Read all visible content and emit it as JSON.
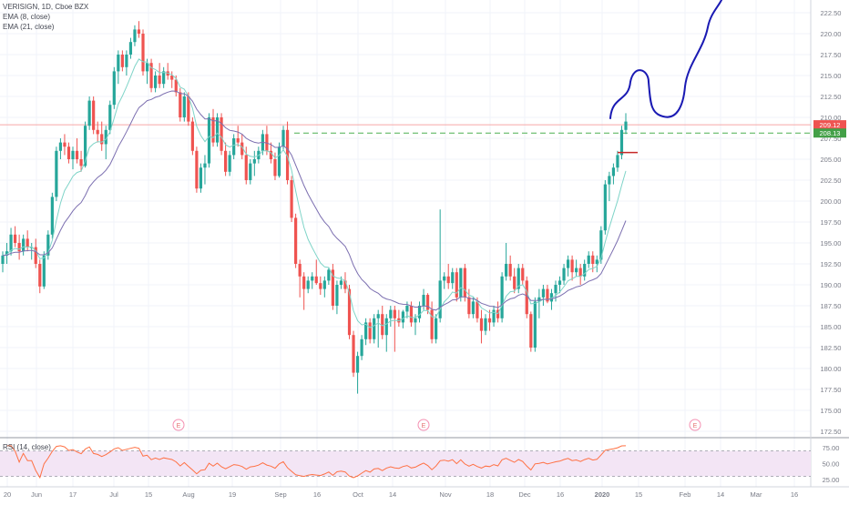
{
  "chart_data": {
    "type": "candlestick",
    "symbol_line": "VERISIGN, 1D, Cboe BZX",
    "indicators": [
      "EMA (8, close)",
      "EMA (21, close)"
    ],
    "rsi_label": "RSI (14, close)",
    "y_ticks": [
      172.5,
      175.0,
      177.5,
      180.0,
      182.5,
      185.0,
      187.5,
      190.0,
      192.5,
      195.0,
      197.5,
      200.0,
      202.5,
      205.0,
      207.5,
      210.0,
      212.5,
      215.0,
      217.5,
      220.0,
      222.5
    ],
    "rsi_ticks": [
      75.0,
      50.0,
      25.0
    ],
    "x_ticks": [
      "20",
      "Jun",
      "17",
      "Jul",
      "15",
      "Aug",
      "19",
      "Sep",
      "16",
      "Oct",
      "14",
      "Nov",
      "18",
      "Dec",
      "16",
      "2020",
      "15",
      "Feb",
      "14",
      "Mar",
      "16"
    ],
    "price_tags": {
      "current": "209.12",
      "level": "208.13"
    },
    "horizontal_lines": {
      "resistance": 209.12,
      "support_dashed": 208.13
    },
    "earnings_markers": [
      "E",
      "E",
      "E"
    ],
    "colors": {
      "up": "#26a69a",
      "down": "#ef5350",
      "ema8": "#7fd4c8",
      "ema21": "#7c6fb0",
      "rsi": "#ff7043",
      "drawing": "#1a1ab3"
    },
    "candles_approx": [
      [
        192.5,
        194,
        191.5,
        193.5
      ],
      [
        193.5,
        195,
        192.5,
        194
      ],
      [
        194,
        196.8,
        193.5,
        196
      ],
      [
        196,
        197,
        194.5,
        195
      ],
      [
        195,
        196,
        193,
        194
      ],
      [
        194,
        196,
        193.5,
        195.5
      ],
      [
        195.5,
        196.5,
        194,
        194.5
      ],
      [
        194.5,
        195,
        193,
        194.5
      ],
      [
        194.5,
        195.5,
        192,
        192.5
      ],
      [
        192.5,
        193,
        189,
        189.8
      ],
      [
        189.8,
        194,
        189.5,
        193.5
      ],
      [
        193.5,
        196.5,
        193,
        196
      ],
      [
        196,
        201,
        195.5,
        200.5
      ],
      [
        200.5,
        206.5,
        200,
        206
      ],
      [
        206,
        207.5,
        205,
        207
      ],
      [
        207,
        208,
        205.5,
        206.5
      ],
      [
        206.5,
        207,
        204.5,
        205
      ],
      [
        205,
        206.5,
        203.8,
        206
      ],
      [
        206,
        207.5,
        204.5,
        205
      ],
      [
        205,
        206,
        203.5,
        204.2
      ],
      [
        204.2,
        209.5,
        204,
        209
      ],
      [
        209,
        212.5,
        208.5,
        212
      ],
      [
        212,
        212.5,
        208,
        208.5
      ],
      [
        208.5,
        209.5,
        207,
        208
      ],
      [
        208,
        209.5,
        206,
        206.8
      ],
      [
        206.8,
        209,
        205,
        208.5
      ],
      [
        208.5,
        212,
        208,
        211.5
      ],
      [
        211.5,
        216,
        211,
        215.5
      ],
      [
        215.5,
        218,
        214,
        217.5
      ],
      [
        217.5,
        218,
        215.5,
        216
      ],
      [
        216,
        218,
        215,
        217.5
      ],
      [
        217.5,
        219.5,
        217,
        219
      ],
      [
        219,
        221,
        218.5,
        220.5
      ],
      [
        220.5,
        221.5,
        219.5,
        220
      ],
      [
        220,
        220.5,
        215,
        215.5
      ],
      [
        215.5,
        217,
        214,
        216.5
      ],
      [
        216.5,
        217,
        213,
        213.5
      ],
      [
        213.5,
        215.5,
        213,
        215
      ],
      [
        215,
        216.5,
        213.5,
        214
      ],
      [
        214,
        216,
        213.5,
        215.5
      ],
      [
        215.5,
        216.5,
        214.5,
        215
      ],
      [
        215,
        215.5,
        213.5,
        214.5
      ],
      [
        214.5,
        215,
        212.5,
        213
      ],
      [
        213,
        213.5,
        209.5,
        210
      ],
      [
        210,
        213,
        209.5,
        212.5
      ],
      [
        212.5,
        213,
        209,
        209.5
      ],
      [
        209.5,
        210,
        205.5,
        206
      ],
      [
        206,
        206.5,
        201,
        201.5
      ],
      [
        201.5,
        204.5,
        201,
        204
      ],
      [
        204,
        205.5,
        202,
        204.5
      ],
      [
        204.5,
        210.5,
        204,
        210
      ],
      [
        210,
        211,
        206.5,
        207
      ],
      [
        207,
        210.5,
        206.5,
        210
      ],
      [
        210,
        210.5,
        205.5,
        206
      ],
      [
        206,
        207,
        203,
        203.5
      ],
      [
        203.5,
        206,
        203,
        205.5
      ],
      [
        205.5,
        208,
        205,
        207.5
      ],
      [
        207.5,
        209,
        206.5,
        207
      ],
      [
        207,
        208,
        205,
        205.5
      ],
      [
        205.5,
        206.5,
        202,
        202.5
      ],
      [
        202.5,
        205,
        202,
        204.5
      ],
      [
        204.5,
        206,
        203,
        205
      ],
      [
        205,
        206.5,
        204.5,
        206
      ],
      [
        206,
        208.5,
        205.5,
        208
      ],
      [
        208,
        209,
        205.5,
        206
      ],
      [
        206,
        207,
        204.5,
        205
      ],
      [
        205,
        205.8,
        202.5,
        203
      ],
      [
        203,
        207,
        202.8,
        206.5
      ],
      [
        206.5,
        209,
        206,
        208.5
      ],
      [
        208.5,
        209.5,
        202,
        202.5
      ],
      [
        202.5,
        203,
        197.5,
        198
      ],
      [
        198,
        198.5,
        192,
        192.5
      ],
      [
        192.5,
        193,
        188.5,
        191
      ],
      [
        191,
        191.5,
        187,
        189.5
      ],
      [
        189.5,
        191,
        189,
        190.5
      ],
      [
        190.5,
        191.5,
        189.5,
        191
      ],
      [
        191,
        193,
        190,
        190.2
      ],
      [
        190.2,
        191,
        188.8,
        189.5
      ],
      [
        189.5,
        191,
        188.5,
        190.5
      ],
      [
        190.5,
        192,
        190,
        191.8
      ],
      [
        191.8,
        192.5,
        187,
        187.5
      ],
      [
        187.5,
        190.5,
        186.5,
        190
      ],
      [
        190,
        191,
        189.5,
        190.5
      ],
      [
        190.5,
        191.5,
        189,
        189.5
      ],
      [
        189.5,
        190,
        183.5,
        184
      ],
      [
        184,
        184.5,
        179,
        179.5
      ],
      [
        179.5,
        182,
        177,
        181.5
      ],
      [
        181.5,
        184,
        181,
        183.5
      ],
      [
        183.5,
        186,
        182.8,
        185.5
      ],
      [
        185.5,
        186,
        183,
        183.5
      ],
      [
        183.5,
        186.5,
        183,
        186
      ],
      [
        186,
        187,
        182.5,
        186.5
      ],
      [
        186.5,
        187.5,
        183.5,
        184
      ],
      [
        184,
        186.5,
        182,
        186
      ],
      [
        186,
        187.5,
        185,
        187
      ],
      [
        187,
        187.5,
        182,
        186
      ],
      [
        186,
        187,
        185,
        185.5
      ],
      [
        185.5,
        187,
        184.8,
        186.8
      ],
      [
        186.8,
        188,
        186,
        187.5
      ],
      [
        187.5,
        188,
        185,
        185.5
      ],
      [
        185.5,
        186.5,
        184,
        186
      ],
      [
        186,
        188,
        185.5,
        187.5
      ],
      [
        187.5,
        189.5,
        187,
        188.8
      ],
      [
        188.8,
        189,
        186.5,
        187
      ],
      [
        187,
        188,
        183,
        183.5
      ],
      [
        183.5,
        186.5,
        183,
        186
      ],
      [
        186,
        199,
        185.5,
        190.5
      ],
      [
        190.5,
        191.5,
        189.5,
        191
      ],
      [
        191,
        192.5,
        189.5,
        190.2
      ],
      [
        190.2,
        192,
        189.5,
        191.5
      ],
      [
        191.5,
        192,
        188,
        188.5
      ],
      [
        188.5,
        192,
        188,
        192
      ],
      [
        192,
        192.5,
        188,
        188.5
      ],
      [
        188.5,
        189.5,
        186,
        186.5
      ],
      [
        186.5,
        188.5,
        186,
        188
      ],
      [
        188,
        188.5,
        185.5,
        186
      ],
      [
        186,
        187,
        183,
        184.5
      ],
      [
        184.5,
        186.5,
        184,
        186
      ],
      [
        186,
        187,
        184.5,
        185.5
      ],
      [
        185.5,
        187.5,
        185,
        187
      ],
      [
        187,
        188,
        185.5,
        186
      ],
      [
        186,
        191.5,
        185.5,
        191
      ],
      [
        191,
        195,
        190.5,
        192.5
      ],
      [
        192.5,
        193.5,
        190.5,
        191
      ],
      [
        191,
        192,
        189,
        189.5
      ],
      [
        189.5,
        192.5,
        189,
        192
      ],
      [
        192,
        192.5,
        190,
        190.5
      ],
      [
        190.5,
        191,
        186,
        186.5
      ],
      [
        186.5,
        186.8,
        182,
        182.5
      ],
      [
        182.5,
        188.5,
        182,
        188
      ],
      [
        188,
        189.5,
        186,
        188.5
      ],
      [
        188.5,
        190,
        187.5,
        189.5
      ],
      [
        189.5,
        190,
        187.8,
        188
      ],
      [
        188,
        189.5,
        187,
        189
      ],
      [
        189,
        190.5,
        188,
        190
      ],
      [
        190,
        191,
        189,
        190.5
      ],
      [
        190.5,
        192.5,
        190,
        192
      ],
      [
        192,
        193.5,
        191,
        193
      ],
      [
        193,
        193.5,
        190.5,
        191.5
      ],
      [
        191.5,
        193,
        191,
        192
      ],
      [
        192,
        192.5,
        190,
        191
      ],
      [
        191,
        193,
        190.5,
        192.5
      ],
      [
        192.5,
        194,
        192,
        193.5
      ],
      [
        193.5,
        194,
        191.5,
        192.5
      ],
      [
        192.5,
        193.5,
        191.5,
        193
      ],
      [
        193,
        197,
        192.5,
        196.5
      ],
      [
        196.5,
        202.5,
        196,
        202
      ],
      [
        202,
        203.5,
        200,
        203
      ],
      [
        203,
        204.5,
        202,
        204
      ],
      [
        204,
        206,
        203.5,
        205.5
      ],
      [
        205.5,
        209,
        205,
        208.5
      ],
      [
        208.5,
        210.5,
        208,
        209.5
      ]
    ]
  }
}
